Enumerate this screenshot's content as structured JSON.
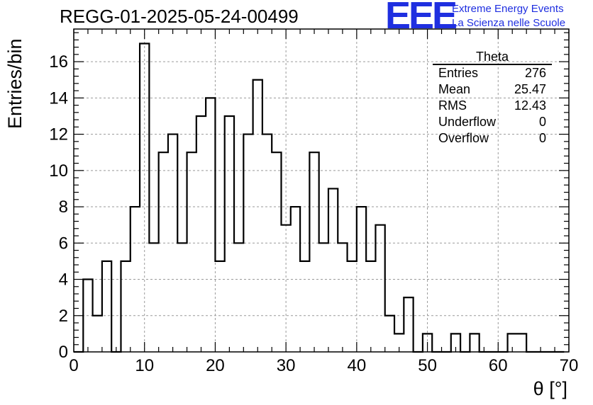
{
  "title": "REGG-01-2025-05-24-00499",
  "logo": {
    "mark": "EEE",
    "line1": "Extreme Energy Events",
    "line2": "La Scienza nelle Scuole"
  },
  "stats": {
    "title": "Theta",
    "rows": [
      {
        "label": "Entries",
        "value": "276"
      },
      {
        "label": "Mean",
        "value": "25.47"
      },
      {
        "label": "RMS",
        "value": "12.43"
      },
      {
        "label": "Underflow",
        "value": "0"
      },
      {
        "label": "Overflow",
        "value": "0"
      }
    ]
  },
  "chart_data": {
    "type": "bar",
    "histogram": true,
    "xlabel": "θ [°]",
    "ylabel": "Entries/bin",
    "xlim": [
      0,
      70
    ],
    "ylim": [
      0,
      17.8
    ],
    "xticks": [
      0,
      10,
      20,
      30,
      40,
      50,
      60,
      70
    ],
    "yticks": [
      0,
      2,
      4,
      6,
      8,
      10,
      12,
      14,
      16
    ],
    "grid": true,
    "bin_edges_start": 0,
    "bin_width": 1.3333,
    "values": [
      0,
      4,
      2,
      5,
      0,
      5,
      8,
      17,
      6,
      11,
      12,
      6,
      11,
      13,
      14,
      5,
      13,
      6,
      12,
      15,
      12,
      11,
      7,
      8,
      5,
      11,
      6,
      9,
      6,
      5,
      8,
      5,
      7,
      2,
      1,
      3,
      0,
      1,
      0,
      0,
      1,
      0,
      1,
      0,
      0,
      0,
      1,
      1,
      0,
      0,
      0,
      0
    ]
  },
  "colors": {
    "logo": "#1f2fe0",
    "histogram": "#000000",
    "grid": "#9a9a9a"
  }
}
